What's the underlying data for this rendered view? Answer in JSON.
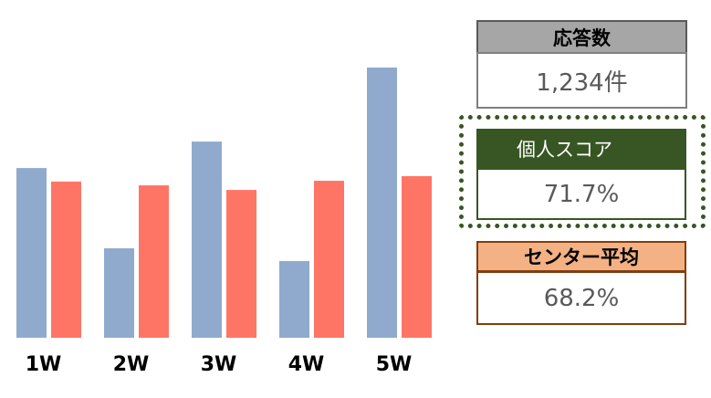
{
  "chart_data": {
    "type": "bar",
    "categories": [
      "1W",
      "2W",
      "3W",
      "4W",
      "5W"
    ],
    "series": [
      {
        "color": "#8faacc",
        "values": [
          62.8,
          33.1,
          72.6,
          28.4,
          100
        ]
      },
      {
        "color": "#ff7565",
        "values": [
          57.8,
          56.4,
          54.7,
          58.1,
          59.8
        ]
      }
    ],
    "ylim": [
      0,
      100
    ]
  },
  "panels": [
    {
      "title": "応答数",
      "value": "1,234件"
    },
    {
      "title": "個人スコア",
      "value": "71.7%"
    },
    {
      "title": "センター平均",
      "value": "68.2%"
    }
  ]
}
